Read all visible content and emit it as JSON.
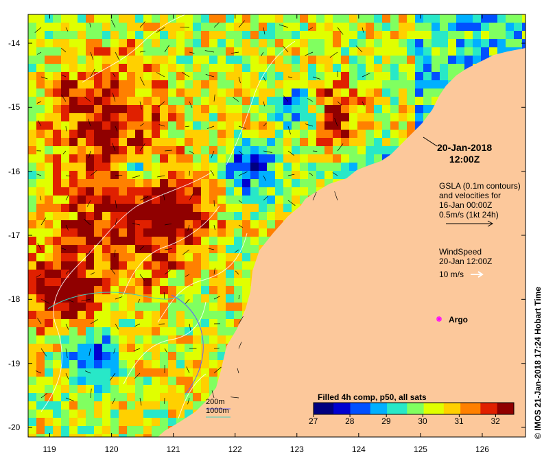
{
  "map": {
    "lon_ticks": [
      "119",
      "120",
      "121",
      "122",
      "123",
      "124",
      "125",
      "126"
    ],
    "lat_ticks": [
      "-14",
      "-15",
      "-16",
      "-17",
      "-18",
      "-19",
      "-20"
    ],
    "lon_range": [
      118.65,
      126.7
    ],
    "lat_range": [
      -20.15,
      -13.55
    ],
    "land_color": "#fcc89b",
    "frame_color": "#000000"
  },
  "annotations": {
    "date_line1": "20-Jan-2018",
    "date_line2": "12:00Z",
    "gsla_line1": "GSLA (0.1m contours)",
    "gsla_line2": "and velocities for",
    "gsla_line3": "16-Jan 00:00Z",
    "gsla_line4": "0.5m/s (1kt 24h)",
    "wind_line1": "WindSpeed",
    "wind_line2": "20-Jan 12:00Z",
    "wind_line3": "10 m/s",
    "argo_label": "Argo",
    "depth_200": "200m",
    "depth_1000": "1000m",
    "credit": "© IMOS 21-Jan-2018 17:24 Hobart Time"
  },
  "colorbar": {
    "title": "Filled 4h comp, p50, all sats",
    "ticks": [
      "27",
      "28",
      "29",
      "30",
      "31",
      "32"
    ],
    "range": [
      27,
      32.5
    ],
    "colors": [
      "#00007f",
      "#0000d0",
      "#0050ff",
      "#00b0ff",
      "#28e8c8",
      "#80ff60",
      "#e0ff00",
      "#ffd000",
      "#ff8000",
      "#e02000",
      "#900000"
    ]
  }
}
